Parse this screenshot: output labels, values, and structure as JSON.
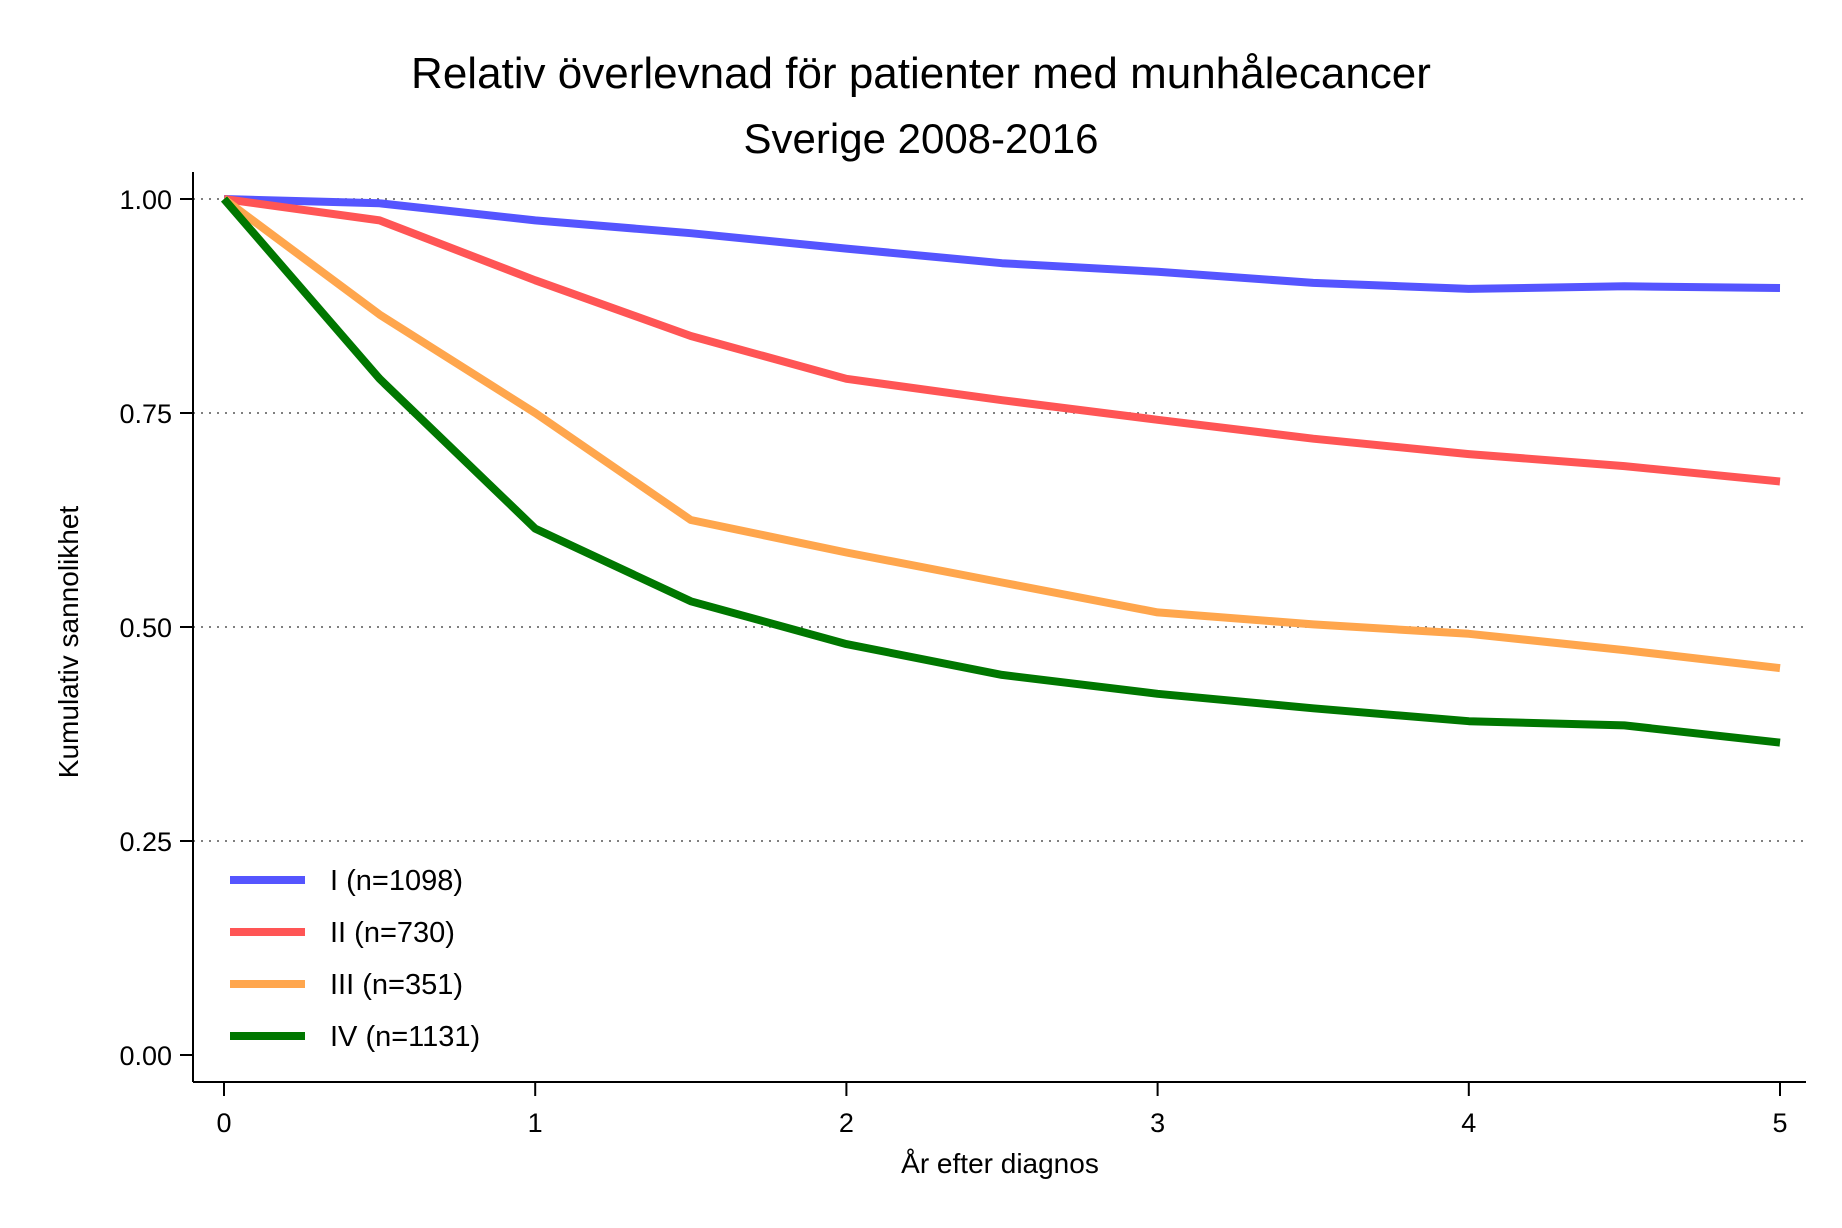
{
  "chart_data": {
    "type": "line",
    "title": "Relativ överlevnad för patienter med munhålecancer",
    "subtitle": "Sverige 2008-2016",
    "xlabel": "År efter diagnos",
    "ylabel": "Kumulativ sannolikhet",
    "xlim": [
      0,
      5
    ],
    "ylim": [
      0,
      1
    ],
    "x_ticks": [
      "0",
      "1",
      "2",
      "3",
      "4",
      "5"
    ],
    "y_ticks": [
      "0.00",
      "0.25",
      "0.50",
      "0.75",
      "1.00"
    ],
    "grid": "horizontal dotted",
    "legend_position": "bottom-left",
    "x": [
      0,
      0.5,
      1,
      1.5,
      2,
      2.5,
      3,
      3.5,
      4,
      4.5,
      5
    ],
    "series": [
      {
        "name": "I (n=1098)",
        "color": "#5555ff",
        "values": [
          1.0,
          0.995,
          0.975,
          0.96,
          0.942,
          0.925,
          0.915,
          0.902,
          0.895,
          0.898,
          0.896
        ]
      },
      {
        "name": "II (n=730)",
        "color": "#ff5555",
        "values": [
          1.0,
          0.975,
          0.905,
          0.84,
          0.79,
          0.765,
          0.742,
          0.72,
          0.702,
          0.688,
          0.67
        ]
      },
      {
        "name": "III (n=351)",
        "color": "#ffa64d",
        "values": [
          1.0,
          0.865,
          0.75,
          0.625,
          0.587,
          0.552,
          0.517,
          0.503,
          0.492,
          0.473,
          0.452
        ]
      },
      {
        "name": "IV (n=1131)",
        "color": "#007700",
        "values": [
          1.0,
          0.79,
          0.615,
          0.53,
          0.48,
          0.444,
          0.422,
          0.405,
          0.39,
          0.385,
          0.365
        ]
      }
    ]
  }
}
